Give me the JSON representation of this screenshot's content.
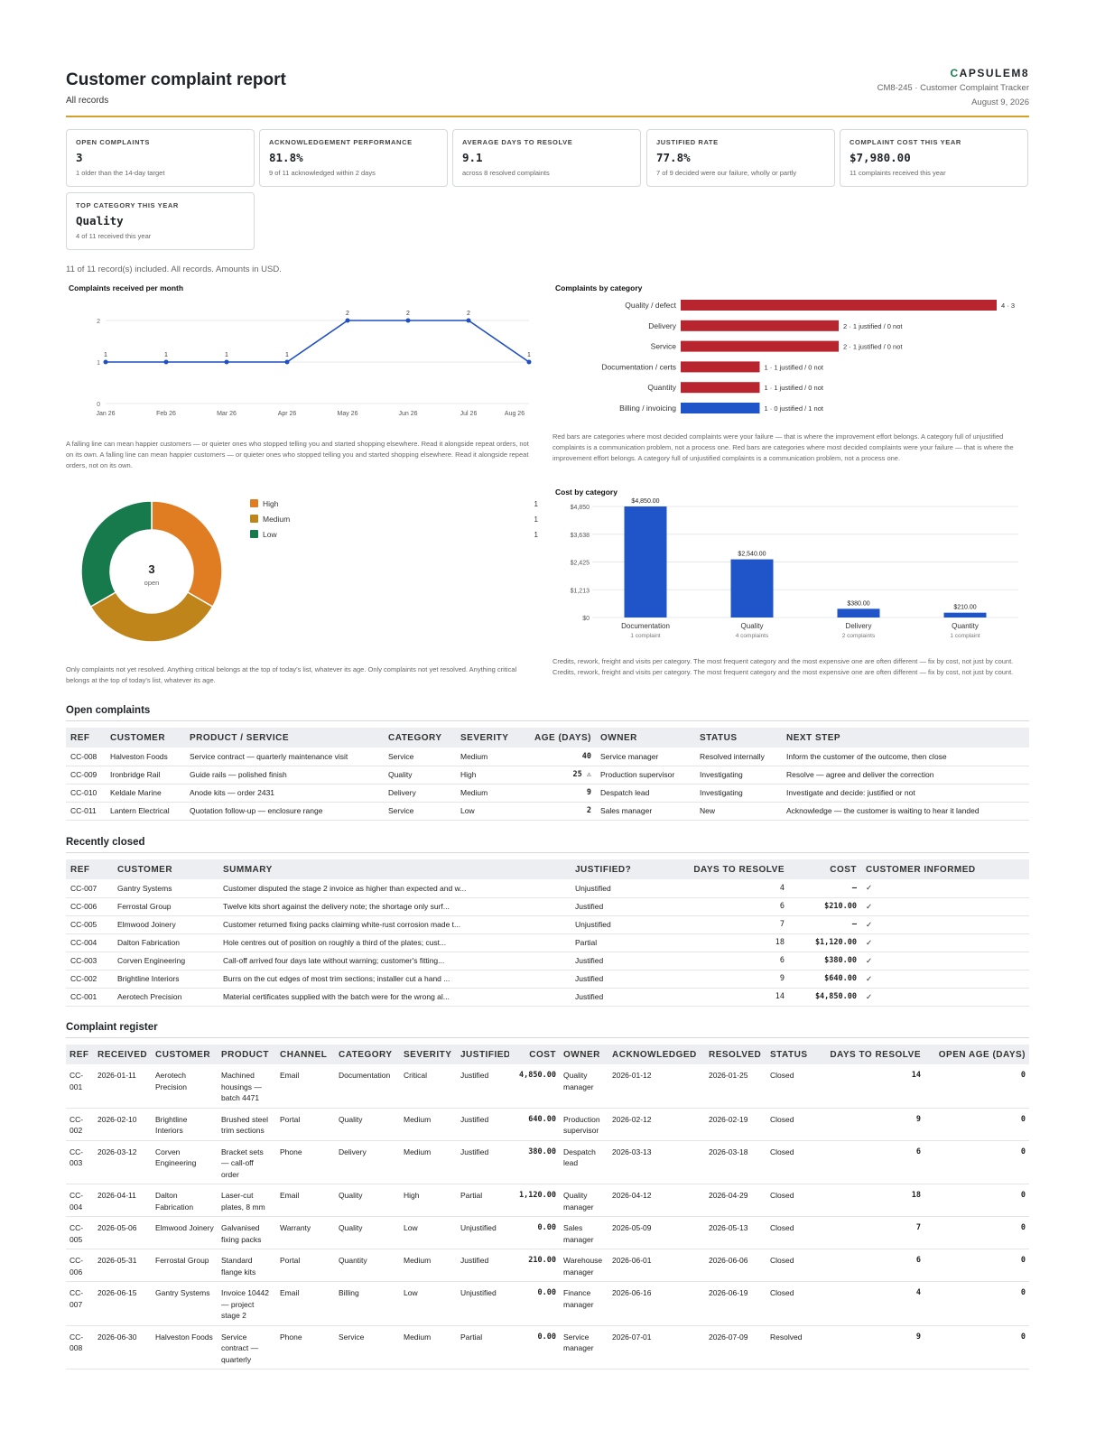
{
  "header": {
    "title": "Customer complaint report",
    "subtitle": "All records",
    "brand_mark": "C",
    "brand_rest": "APSULEM8",
    "doc_id": "CM8-245 · Customer Complaint Tracker",
    "date": "August 9, 2026"
  },
  "kpis": [
    {
      "label": "Open complaints",
      "value": "3",
      "sub": "1 older than the 14-day target"
    },
    {
      "label": "Acknowledgement performance",
      "value": "81.8%",
      "sub": "9 of 11 acknowledged within 2 days"
    },
    {
      "label": "Average days to resolve",
      "value": "9.1",
      "sub": "across 8 resolved complaints"
    },
    {
      "label": "Justified rate",
      "value": "77.8%",
      "sub": "7 of 9 decided were our failure, wholly or partly"
    },
    {
      "label": "Complaint cost this year",
      "value": "$7,980.00",
      "sub": "11 complaints received this year"
    },
    {
      "label": "Top category this year",
      "value": "Quality",
      "sub": "4 of 11 received this year"
    }
  ],
  "included_note": "11 of 11 record(s) included. All records. Amounts in USD.",
  "chart_data": [
    {
      "type": "line",
      "title": "Complaints received per month",
      "categories": [
        "Jan 26",
        "Feb 26",
        "Mar 26",
        "Apr 26",
        "May 26",
        "Jun 26",
        "Jul 26",
        "Aug 26"
      ],
      "values": [
        1,
        1,
        1,
        1,
        2,
        2,
        2,
        1
      ],
      "yticks": [
        "0",
        "1",
        "2"
      ],
      "ylim": [
        0,
        2.5
      ],
      "color": "#1f4fc4",
      "note": "A falling line can mean happier customers — or quieter ones who stopped telling you and started shopping elsewhere. Read it alongside repeat orders, not on its own. A falling line can mean happier customers — or quieter ones who stopped telling you and started shopping elsewhere. Read it alongside repeat orders, not on its own."
    },
    {
      "type": "bar",
      "orientation": "horizontal",
      "title": "Complaints by category",
      "categories": [
        "Quality / defect",
        "Delivery",
        "Service",
        "Documentation / certs",
        "Quantity",
        "Billing / invoicing"
      ],
      "values": [
        4,
        2,
        2,
        1,
        1,
        1
      ],
      "labels": [
        "4 · 3",
        "2 · 1 justified / 0 not",
        "2 · 1 justified / 0 not",
        "1 · 1 justified / 0 not",
        "1 · 1 justified / 0 not",
        "1 · 0 justified / 1 not"
      ],
      "colors": [
        "#b8252f",
        "#b8252f",
        "#b8252f",
        "#b8252f",
        "#b8252f",
        "#1f55c9"
      ],
      "note": "Red bars are categories where most decided complaints were your failure — that is where the improvement effort belongs. A category full of unjustified complaints is a communication problem, not a process one. Red bars are categories where most decided complaints were your failure — that is where the improvement effort belongs. A category full of unjustified complaints is a communication problem, not a process one."
    },
    {
      "type": "pie",
      "title": "",
      "categories": [
        "High",
        "Medium",
        "Low"
      ],
      "values": [
        1,
        1,
        1
      ],
      "value_labels": [
        "1",
        "1",
        "1"
      ],
      "colors": [
        "#e07d22",
        "#c0851a",
        "#167a4c"
      ],
      "center_value": "3",
      "center_label": "open",
      "note": "Only complaints not yet resolved. Anything critical belongs at the top of today's list, whatever its age. Only complaints not yet resolved. Anything critical belongs at the top of today's list, whatever its age."
    },
    {
      "type": "bar",
      "title": "Cost by category",
      "categories": [
        "Documentation",
        "Quality",
        "Delivery",
        "Quantity"
      ],
      "subcategories": [
        "1 complaint",
        "4 complaints",
        "2 complaints",
        "1 complaint"
      ],
      "values": [
        4850,
        2540,
        380,
        210
      ],
      "value_labels": [
        "$4,850.00",
        "$2,540.00",
        "$380.00",
        "$210.00"
      ],
      "yticks": [
        "$0",
        "$1,213",
        "$2,425",
        "$3,638",
        "$4,850"
      ],
      "ylim": [
        0,
        4850
      ],
      "color": "#1f55c9",
      "note": "Credits, rework, freight and visits per category. The most frequent category and the most expensive one are often different — fix by cost, not just by count. Credits, rework, freight and visits per category. The most frequent category and the most expensive one are often different — fix by cost, not just by count."
    }
  ],
  "open_complaints": {
    "title": "Open complaints",
    "headers": [
      "Ref",
      "Customer",
      "Product / service",
      "Category",
      "Severity",
      "Age (days)",
      "Owner",
      "Status",
      "Next step"
    ],
    "rows": [
      {
        "ref": "CC-008",
        "customer": "Halveston Foods",
        "product": "Service contract — quarterly maintenance visit",
        "category": "Service",
        "severity": "Medium",
        "age": "40",
        "owner": "Service manager",
        "status": "Resolved internally",
        "next": "Inform the customer of the outcome, then close"
      },
      {
        "ref": "CC-009",
        "customer": "Ironbridge Rail",
        "product": "Guide rails — polished finish",
        "category": "Quality",
        "severity": "High",
        "age": "25 ⚠",
        "owner": "Production supervisor",
        "status": "Investigating",
        "next": "Resolve — agree and deliver the correction"
      },
      {
        "ref": "CC-010",
        "customer": "Keldale Marine",
        "product": "Anode kits — order 2431",
        "category": "Delivery",
        "severity": "Medium",
        "age": "9",
        "owner": "Despatch lead",
        "status": "Investigating",
        "next": "Investigate and decide: justified or not"
      },
      {
        "ref": "CC-011",
        "customer": "Lantern Electrical",
        "product": "Quotation follow-up — enclosure range",
        "category": "Service",
        "severity": "Low",
        "age": "2",
        "owner": "Sales manager",
        "status": "New",
        "next": "Acknowledge — the customer is waiting to hear it landed"
      }
    ]
  },
  "recently_closed": {
    "title": "Recently closed",
    "headers": [
      "Ref",
      "Customer",
      "Summary",
      "Justified?",
      "Days to resolve",
      "Cost",
      "Customer informed"
    ],
    "rows": [
      {
        "ref": "CC-007",
        "customer": "Gantry Systems",
        "summary": "Customer disputed the stage 2 invoice as higher than expected and w...",
        "justified": "Unjustified",
        "days": "4",
        "cost": "—",
        "informed": "✓"
      },
      {
        "ref": "CC-006",
        "customer": "Ferrostal Group",
        "summary": "Twelve kits short against the delivery note; the shortage only surf...",
        "justified": "Justified",
        "days": "6",
        "cost": "$210.00",
        "informed": "✓"
      },
      {
        "ref": "CC-005",
        "customer": "Elmwood Joinery",
        "summary": "Customer returned fixing packs claiming white-rust corrosion made t...",
        "justified": "Unjustified",
        "days": "7",
        "cost": "—",
        "informed": "✓"
      },
      {
        "ref": "CC-004",
        "customer": "Dalton Fabrication",
        "summary": "Hole centres out of position on roughly a third of the plates; cust...",
        "justified": "Partial",
        "days": "18",
        "cost": "$1,120.00",
        "informed": "✓"
      },
      {
        "ref": "CC-003",
        "customer": "Corven Engineering",
        "summary": "Call-off arrived four days late without warning; customer's fitting...",
        "justified": "Justified",
        "days": "6",
        "cost": "$380.00",
        "informed": "✓"
      },
      {
        "ref": "CC-002",
        "customer": "Brightline Interiors",
        "summary": "Burrs on the cut edges of most trim sections; installer cut a hand ...",
        "justified": "Justified",
        "days": "9",
        "cost": "$640.00",
        "informed": "✓"
      },
      {
        "ref": "CC-001",
        "customer": "Aerotech Precision",
        "summary": "Material certificates supplied with the batch were for the wrong al...",
        "justified": "Justified",
        "days": "14",
        "cost": "$4,850.00",
        "informed": "✓"
      }
    ]
  },
  "register": {
    "title": "Complaint register",
    "headers": [
      "Ref",
      "Received",
      "Customer",
      "Product",
      "Channel",
      "Category",
      "Severity",
      "Justified",
      "Cost",
      "Owner",
      "Acknowledged",
      "Resolved",
      "Status",
      "Days to resolve",
      "Open age (days)"
    ],
    "rows": [
      {
        "ref": "CC-001",
        "received": "2026-01-11",
        "customer": "Aerotech Precision",
        "product": "Machined housings — batch 4471",
        "channel": "Email",
        "category": "Documentation",
        "severity": "Critical",
        "justified": "Justified",
        "cost": "4,850.00",
        "owner": "Quality manager",
        "ack": "2026-01-12",
        "resolved": "2026-01-25",
        "status": "Closed",
        "days": "14",
        "age": "0"
      },
      {
        "ref": "CC-002",
        "received": "2026-02-10",
        "customer": "Brightline Interiors",
        "product": "Brushed steel trim sections",
        "channel": "Portal",
        "category": "Quality",
        "severity": "Medium",
        "justified": "Justified",
        "cost": "640.00",
        "owner": "Production supervisor",
        "ack": "2026-02-12",
        "resolved": "2026-02-19",
        "status": "Closed",
        "days": "9",
        "age": "0"
      },
      {
        "ref": "CC-003",
        "received": "2026-03-12",
        "customer": "Corven Engineering",
        "product": "Bracket sets — call-off order",
        "channel": "Phone",
        "category": "Delivery",
        "severity": "Medium",
        "justified": "Justified",
        "cost": "380.00",
        "owner": "Despatch lead",
        "ack": "2026-03-13",
        "resolved": "2026-03-18",
        "status": "Closed",
        "days": "6",
        "age": "0"
      },
      {
        "ref": "CC-004",
        "received": "2026-04-11",
        "customer": "Dalton Fabrication",
        "product": "Laser-cut plates, 8 mm",
        "channel": "Email",
        "category": "Quality",
        "severity": "High",
        "justified": "Partial",
        "cost": "1,120.00",
        "owner": "Quality manager",
        "ack": "2026-04-12",
        "resolved": "2026-04-29",
        "status": "Closed",
        "days": "18",
        "age": "0"
      },
      {
        "ref": "CC-005",
        "received": "2026-05-06",
        "customer": "Elmwood Joinery",
        "product": "Galvanised fixing packs",
        "channel": "Warranty",
        "category": "Quality",
        "severity": "Low",
        "justified": "Unjustified",
        "cost": "0.00",
        "owner": "Sales manager",
        "ack": "2026-05-09",
        "resolved": "2026-05-13",
        "status": "Closed",
        "days": "7",
        "age": "0"
      },
      {
        "ref": "CC-006",
        "received": "2026-05-31",
        "customer": "Ferrostal Group",
        "product": "Standard flange kits",
        "channel": "Portal",
        "category": "Quantity",
        "severity": "Medium",
        "justified": "Justified",
        "cost": "210.00",
        "owner": "Warehouse manager",
        "ack": "2026-06-01",
        "resolved": "2026-06-06",
        "status": "Closed",
        "days": "6",
        "age": "0"
      },
      {
        "ref": "CC-007",
        "received": "2026-06-15",
        "customer": "Gantry Systems",
        "product": "Invoice 10442 — project stage 2",
        "channel": "Email",
        "category": "Billing",
        "severity": "Low",
        "justified": "Unjustified",
        "cost": "0.00",
        "owner": "Finance manager",
        "ack": "2026-06-16",
        "resolved": "2026-06-19",
        "status": "Closed",
        "days": "4",
        "age": "0"
      },
      {
        "ref": "CC-008",
        "received": "2026-06-30",
        "customer": "Halveston Foods",
        "product": "Service contract — quarterly",
        "channel": "Phone",
        "category": "Service",
        "severity": "Medium",
        "justified": "Partial",
        "cost": "0.00",
        "owner": "Service manager",
        "ack": "2026-07-01",
        "resolved": "2026-07-09",
        "status": "Resolved",
        "days": "9",
        "age": "0"
      }
    ]
  }
}
